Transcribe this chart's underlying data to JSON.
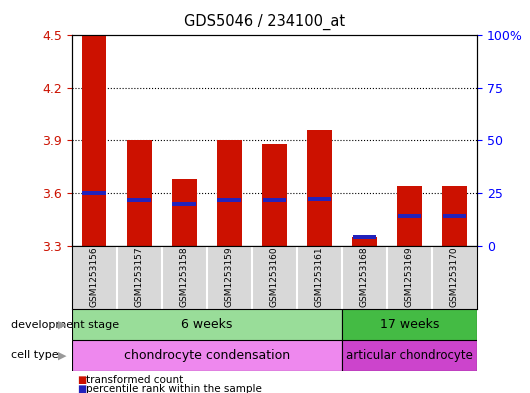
{
  "title": "GDS5046 / 234100_at",
  "samples": [
    "GSM1253156",
    "GSM1253157",
    "GSM1253158",
    "GSM1253159",
    "GSM1253160",
    "GSM1253161",
    "GSM1253168",
    "GSM1253169",
    "GSM1253170"
  ],
  "transformed_counts": [
    4.5,
    3.9,
    3.68,
    3.9,
    3.88,
    3.96,
    3.35,
    3.64,
    3.64
  ],
  "percentile_ranks": [
    3.598,
    3.558,
    3.538,
    3.558,
    3.558,
    3.568,
    3.348,
    3.468,
    3.468
  ],
  "ylim": [
    3.3,
    4.5
  ],
  "yticks": [
    3.3,
    3.6,
    3.9,
    4.2,
    4.5
  ],
  "y2tick_labels": [
    "0",
    "25",
    "50",
    "75",
    "100%"
  ],
  "bar_color": "#cc1100",
  "percentile_color": "#2222bb",
  "bg_color": "#ffffff",
  "bar_width": 0.55,
  "development_stage_label": "development stage",
  "cell_type_label": "cell type",
  "group1_label": "6 weeks",
  "group2_label": "17 weeks",
  "celltype1_label": "chondrocyte condensation",
  "celltype2_label": "articular chondrocyte",
  "group1_color": "#99dd99",
  "group2_color": "#44bb44",
  "celltype1_color": "#ee88ee",
  "celltype2_color": "#cc44cc",
  "legend_items": [
    "transformed count",
    "percentile rank within the sample"
  ],
  "group1_samples": 6,
  "group2_samples": 3
}
